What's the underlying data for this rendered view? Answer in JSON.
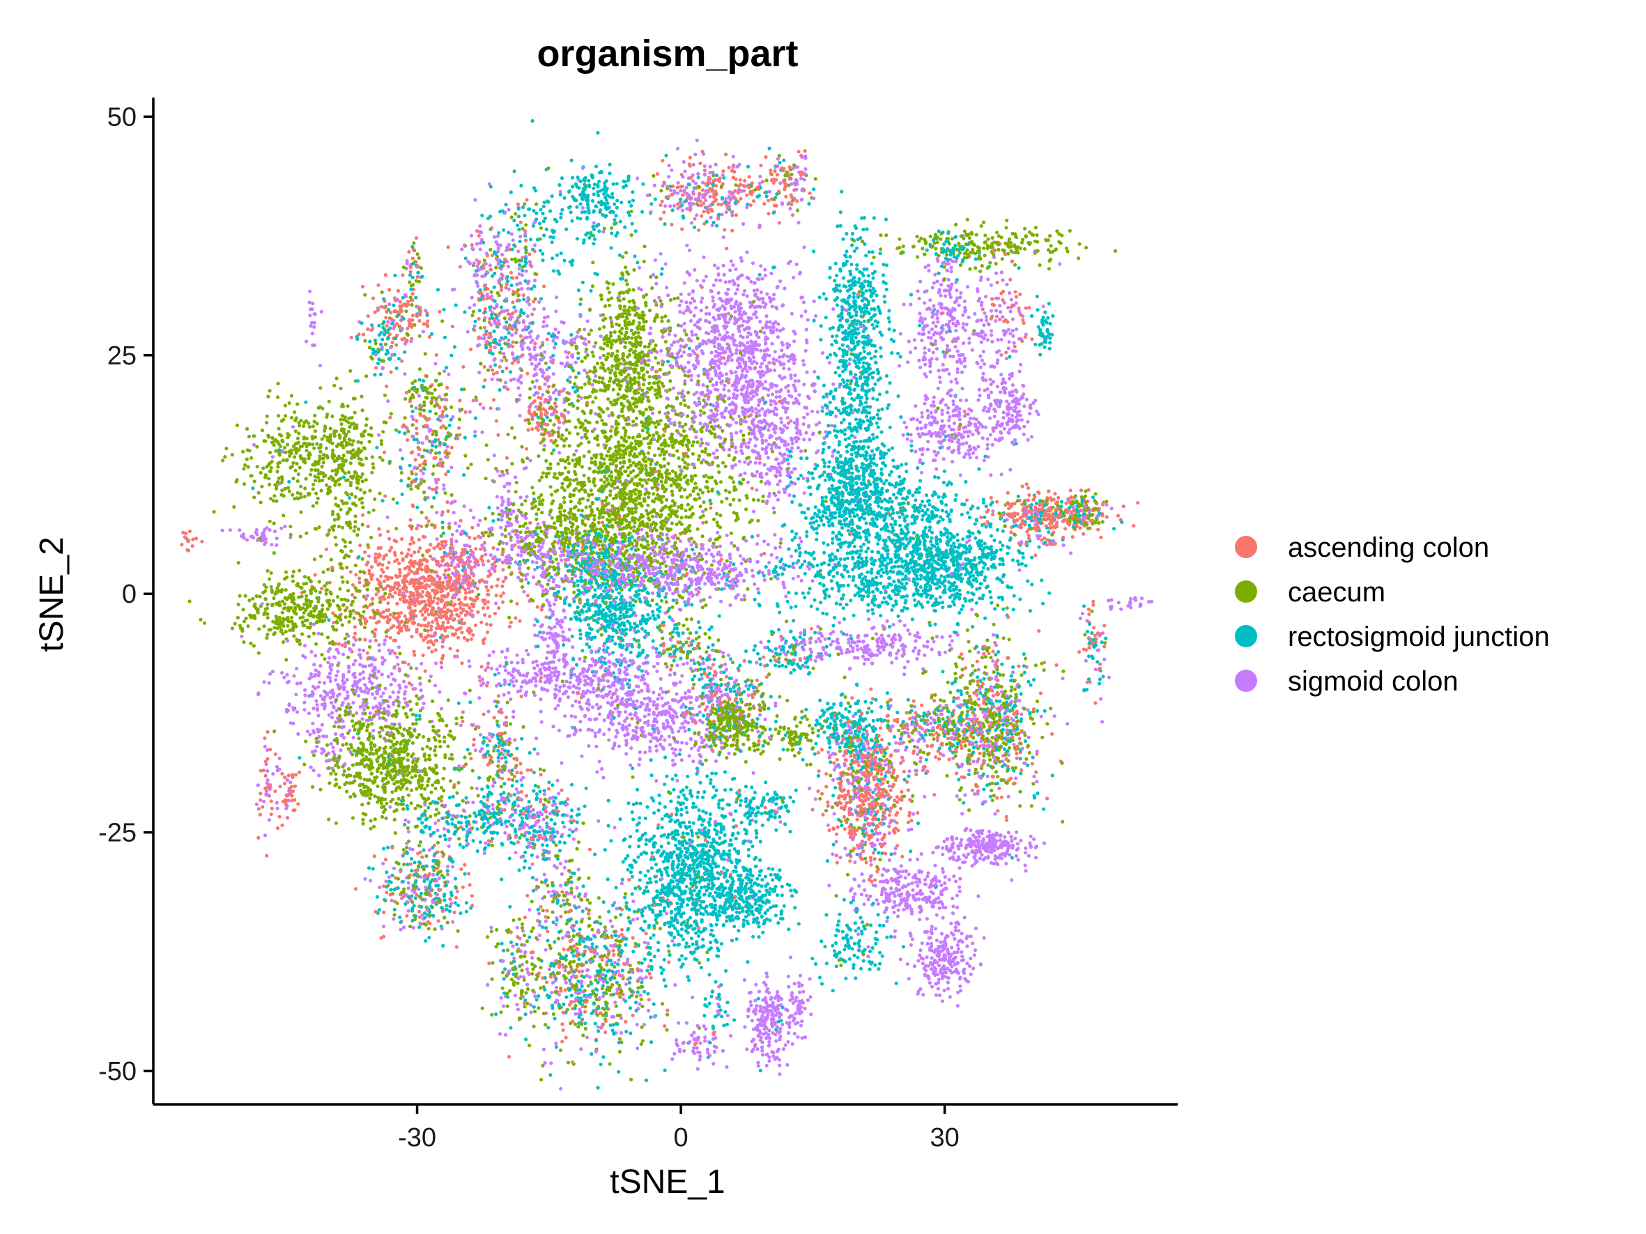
{
  "chart_data": {
    "type": "scatter",
    "title": "organism_part",
    "xlabel": "tSNE_1",
    "ylabel": "tSNE_2",
    "xlim": [
      -60,
      56.5
    ],
    "ylim": [
      -53.5,
      52
    ],
    "x_ticks": [
      -30,
      0,
      30
    ],
    "y_ticks": [
      -50,
      -25,
      0,
      25,
      50
    ],
    "x_tick_labels": [
      "-30",
      "0",
      "30"
    ],
    "y_tick_labels": [
      "-50",
      "-25",
      "0",
      "25",
      "50"
    ],
    "grid": false,
    "legend_position": "right",
    "series": [
      {
        "name": "ascending colon",
        "color": "#F8766D"
      },
      {
        "name": "caecum",
        "color": "#7CAE00"
      },
      {
        "name": "rectosigmoid junction",
        "color": "#00BFC4"
      },
      {
        "name": "sigmoid colon",
        "color": "#C77CFF"
      }
    ],
    "clusters": [
      {
        "cx": -29,
        "cy": 0,
        "sx": 4.5,
        "sy": 3.2,
        "n": 900,
        "mix": [
          0.96,
          0.01,
          0.01,
          0.02
        ]
      },
      {
        "cx": -56,
        "cy": 5.5,
        "sx": 0.5,
        "sy": 0.6,
        "n": 14,
        "mix": [
          1,
          0,
          0,
          0
        ]
      },
      {
        "cx": -48,
        "cy": 6,
        "sx": 1.5,
        "sy": 0.5,
        "n": 40,
        "mix": [
          0,
          0,
          0,
          1
        ]
      },
      {
        "cx": -43,
        "cy": -1.5,
        "sx": 4,
        "sy": 1.8,
        "n": 360,
        "mix": [
          0,
          0.98,
          0.01,
          0.01
        ]
      },
      {
        "cx": -43,
        "cy": 14,
        "sx": 3.5,
        "sy": 3,
        "n": 340,
        "mix": [
          0,
          0.98,
          0.01,
          0.01
        ]
      },
      {
        "cx": -38,
        "cy": 12,
        "sx": 1.5,
        "sy": 5,
        "n": 230,
        "mix": [
          0,
          0.98,
          0.01,
          0.01
        ]
      },
      {
        "cx": -37,
        "cy": -10,
        "sx": 4,
        "sy": 2.2,
        "n": 360,
        "mix": [
          0.01,
          0.01,
          0.02,
          0.96
        ]
      },
      {
        "cx": -40,
        "cy": -16,
        "sx": 1.2,
        "sy": 1.5,
        "n": 40,
        "mix": [
          0,
          0,
          0,
          1
        ]
      },
      {
        "cx": -47,
        "cy": -20,
        "sx": 0.8,
        "sy": 2.5,
        "n": 50,
        "mix": [
          0.5,
          0,
          0,
          0.5
        ]
      },
      {
        "cx": -44.5,
        "cy": -21,
        "sx": 0.5,
        "sy": 1.5,
        "n": 40,
        "mix": [
          0.85,
          0,
          0,
          0.15
        ]
      },
      {
        "cx": -42,
        "cy": 29,
        "sx": 0.4,
        "sy": 1.5,
        "n": 18,
        "mix": [
          0,
          0,
          0,
          1
        ]
      },
      {
        "cx": -32,
        "cy": 29,
        "sx": 2,
        "sy": 2,
        "n": 140,
        "mix": [
          0.6,
          0.12,
          0.14,
          0.14
        ]
      },
      {
        "cx": -34,
        "cy": 26,
        "sx": 1.2,
        "sy": 2,
        "n": 60,
        "mix": [
          0.1,
          0.2,
          0.5,
          0.2
        ]
      },
      {
        "cx": -30.5,
        "cy": 34,
        "sx": 0.6,
        "sy": 1.8,
        "n": 40,
        "mix": [
          0.2,
          0.3,
          0.2,
          0.3
        ]
      },
      {
        "cx": -28.5,
        "cy": 16,
        "sx": 2.2,
        "sy": 4,
        "n": 270,
        "mix": [
          0.28,
          0.3,
          0.22,
          0.2
        ]
      },
      {
        "cx": -29,
        "cy": 21,
        "sx": 1,
        "sy": 1.2,
        "n": 40,
        "mix": [
          0,
          0.9,
          0.1,
          0
        ]
      },
      {
        "cx": -25,
        "cy": 4,
        "sx": 1.5,
        "sy": 3,
        "n": 90,
        "mix": [
          0,
          0.02,
          0.03,
          0.95
        ]
      },
      {
        "cx": -21.5,
        "cy": 33,
        "sx": 2,
        "sy": 3,
        "n": 180,
        "mix": [
          0.15,
          0.1,
          0.15,
          0.6
        ]
      },
      {
        "cx": -21,
        "cy": 27,
        "sx": 1.5,
        "sy": 3.5,
        "n": 150,
        "mix": [
          0.45,
          0.15,
          0.2,
          0.2
        ]
      },
      {
        "cx": -18,
        "cy": 33,
        "sx": 1.2,
        "sy": 4,
        "n": 100,
        "mix": [
          0.2,
          0.25,
          0.3,
          0.25
        ]
      },
      {
        "cx": -15,
        "cy": 25,
        "sx": 3,
        "sy": 3,
        "n": 230,
        "mix": [
          0.04,
          0.04,
          0.1,
          0.82
        ]
      },
      {
        "cx": -15.5,
        "cy": 18.5,
        "sx": 1.2,
        "sy": 1.5,
        "n": 90,
        "mix": [
          0.8,
          0.06,
          0.07,
          0.07
        ]
      },
      {
        "cx": -19.5,
        "cy": 8,
        "sx": 1.5,
        "sy": 3,
        "n": 110,
        "mix": [
          0.02,
          0.1,
          0.05,
          0.83
        ]
      },
      {
        "cx": -16,
        "cy": 4,
        "sx": 2,
        "sy": 2,
        "n": 110,
        "mix": [
          0.02,
          0.08,
          0.1,
          0.8
        ]
      },
      {
        "cx": -16.5,
        "cy": -8.5,
        "sx": 4,
        "sy": 1.3,
        "n": 160,
        "mix": [
          0,
          0.02,
          0.02,
          0.96
        ]
      },
      {
        "cx": -14.5,
        "cy": -4,
        "sx": 1,
        "sy": 3,
        "n": 110,
        "mix": [
          0,
          0.02,
          0.02,
          0.96
        ]
      },
      {
        "cx": -12,
        "cy": 39,
        "sx": 5,
        "sy": 3,
        "n": 160,
        "mix": [
          0,
          0.01,
          0.97,
          0.02
        ]
      },
      {
        "cx": -10,
        "cy": 42,
        "sx": 1.8,
        "sy": 1.5,
        "n": 110,
        "mix": [
          0,
          0.01,
          0.97,
          0.02
        ]
      },
      {
        "cx": -6,
        "cy": 25,
        "sx": 2.5,
        "sy": 4,
        "n": 480,
        "mix": [
          0.01,
          0.96,
          0.01,
          0.02
        ]
      },
      {
        "cx": -5,
        "cy": 12,
        "sx": 6,
        "sy": 6,
        "n": 1500,
        "mix": [
          0.01,
          0.96,
          0.01,
          0.02
        ]
      },
      {
        "cx": -10,
        "cy": 6,
        "sx": 5,
        "sy": 3,
        "n": 400,
        "mix": [
          0.01,
          0.94,
          0.02,
          0.03
        ]
      },
      {
        "cx": -7,
        "cy": -2,
        "sx": 3,
        "sy": 3,
        "n": 440,
        "mix": [
          0.01,
          0.01,
          0.96,
          0.02
        ]
      },
      {
        "cx": -9,
        "cy": 2,
        "sx": 2,
        "sy": 2.5,
        "n": 160,
        "mix": [
          0.01,
          0.02,
          0.95,
          0.02
        ]
      },
      {
        "cx": -4,
        "cy": 3,
        "sx": 6,
        "sy": 1.8,
        "n": 320,
        "mix": [
          0.03,
          0.04,
          0.05,
          0.88
        ]
      },
      {
        "cx": 4,
        "cy": 2,
        "sx": 5,
        "sy": 1.6,
        "n": 220,
        "mix": [
          0.03,
          0.04,
          0.05,
          0.88
        ]
      },
      {
        "cx": -3,
        "cy": -13,
        "sx": 5,
        "sy": 2.5,
        "n": 450,
        "mix": [
          0.01,
          0.01,
          0.01,
          0.97
        ]
      },
      {
        "cx": -8.5,
        "cy": -9,
        "sx": 2.5,
        "sy": 1.6,
        "n": 140,
        "mix": [
          0.01,
          0.02,
          0.02,
          0.95
        ]
      },
      {
        "cx": 0.5,
        "cy": -5.5,
        "sx": 2,
        "sy": 1.5,
        "n": 110,
        "mix": [
          0.1,
          0.35,
          0.35,
          0.2
        ]
      },
      {
        "cx": 2.5,
        "cy": 42,
        "sx": 3,
        "sy": 1.8,
        "n": 260,
        "mix": [
          0.42,
          0.07,
          0.11,
          0.4
        ]
      },
      {
        "cx": 8.5,
        "cy": 42,
        "sx": 1.2,
        "sy": 1,
        "n": 40,
        "mix": [
          0.6,
          0.1,
          0.2,
          0.1
        ]
      },
      {
        "cx": 12.5,
        "cy": 43,
        "sx": 1.5,
        "sy": 1.8,
        "n": 110,
        "mix": [
          0.42,
          0.1,
          0.1,
          0.38
        ]
      },
      {
        "cx": 6,
        "cy": 27,
        "sx": 4,
        "sy": 4,
        "n": 650,
        "mix": [
          0.01,
          0.01,
          0.01,
          0.97
        ]
      },
      {
        "cx": 8.5,
        "cy": 19,
        "sx": 4,
        "sy": 3.5,
        "n": 450,
        "mix": [
          0.01,
          0.01,
          0.01,
          0.97
        ]
      },
      {
        "cx": 11,
        "cy": 13,
        "sx": 1.5,
        "sy": 3,
        "n": 90,
        "mix": [
          0.01,
          0.02,
          0.03,
          0.94
        ]
      },
      {
        "cx": 5,
        "cy": -10.5,
        "sx": 2.5,
        "sy": 2,
        "n": 230,
        "mix": [
          0.28,
          0.06,
          0.36,
          0.3
        ]
      },
      {
        "cx": 6.5,
        "cy": -14,
        "sx": 2.2,
        "sy": 1.5,
        "n": 230,
        "mix": [
          0.02,
          0.9,
          0.05,
          0.03
        ]
      },
      {
        "cx": 12.5,
        "cy": -6,
        "sx": 1.5,
        "sy": 1.3,
        "n": 110,
        "mix": [
          0.15,
          0.15,
          0.55,
          0.15
        ]
      },
      {
        "cx": 13,
        "cy": -15,
        "sx": 1,
        "sy": 1,
        "n": 60,
        "mix": [
          0,
          0.9,
          0.1,
          0
        ]
      },
      {
        "cx": 20,
        "cy": 30,
        "sx": 1.7,
        "sy": 4,
        "n": 330,
        "mix": [
          0,
          0.01,
          0.97,
          0.02
        ]
      },
      {
        "cx": 20,
        "cy": 20,
        "sx": 1.7,
        "sy": 4.5,
        "n": 330,
        "mix": [
          0,
          0.01,
          0.97,
          0.02
        ]
      },
      {
        "cx": 20,
        "cy": 10,
        "sx": 3,
        "sy": 3,
        "n": 600,
        "mix": [
          0.01,
          0.01,
          0.97,
          0.01
        ]
      },
      {
        "cx": 23,
        "cy": 2,
        "sx": 6,
        "sy": 2.2,
        "n": 500,
        "mix": [
          0,
          0.01,
          0.98,
          0.01
        ]
      },
      {
        "cx": 31,
        "cy": 3,
        "sx": 4,
        "sy": 2.5,
        "n": 450,
        "mix": [
          0,
          0.01,
          0.98,
          0.01
        ]
      },
      {
        "cx": 27,
        "cy": 7,
        "sx": 2.5,
        "sy": 3,
        "n": 220,
        "mix": [
          0,
          0.01,
          0.98,
          0.01
        ]
      },
      {
        "cx": 22,
        "cy": -5.5,
        "sx": 4.5,
        "sy": 1,
        "n": 200,
        "mix": [
          0,
          0.01,
          0.01,
          0.98
        ]
      },
      {
        "cx": 30,
        "cy": 28,
        "sx": 2,
        "sy": 3.5,
        "n": 260,
        "mix": [
          0.01,
          0.01,
          0.02,
          0.96
        ]
      },
      {
        "cx": 30.5,
        "cy": 17,
        "sx": 2.5,
        "sy": 1.8,
        "n": 220,
        "mix": [
          0.01,
          0.01,
          0.02,
          0.96
        ]
      },
      {
        "cx": 35.5,
        "cy": 25,
        "sx": 1.5,
        "sy": 5,
        "n": 110,
        "mix": [
          0,
          0,
          0.05,
          0.95
        ]
      },
      {
        "cx": 37.5,
        "cy": 19.5,
        "sx": 1.3,
        "sy": 2,
        "n": 110,
        "mix": [
          0,
          0,
          0.02,
          0.98
        ]
      },
      {
        "cx": 35,
        "cy": 36.5,
        "sx": 5,
        "sy": 1,
        "n": 220,
        "mix": [
          0.01,
          0.94,
          0.03,
          0.02
        ]
      },
      {
        "cx": 30.5,
        "cy": 36,
        "sx": 1.3,
        "sy": 0.9,
        "n": 40,
        "mix": [
          0,
          0.1,
          0.9,
          0
        ]
      },
      {
        "cx": 37.5,
        "cy": 29.5,
        "sx": 1.2,
        "sy": 2,
        "n": 50,
        "mix": [
          0.6,
          0,
          0,
          0.4
        ]
      },
      {
        "cx": 41.5,
        "cy": 28,
        "sx": 0.6,
        "sy": 1.5,
        "n": 40,
        "mix": [
          0,
          0,
          1,
          0
        ]
      },
      {
        "cx": 42,
        "cy": 8.5,
        "sx": 3.5,
        "sy": 1,
        "n": 380,
        "mix": [
          0.68,
          0.07,
          0.18,
          0.07
        ]
      },
      {
        "cx": 46,
        "cy": 8.5,
        "sx": 1,
        "sy": 1,
        "n": 60,
        "mix": [
          0.1,
          0.6,
          0.2,
          0.1
        ]
      },
      {
        "cx": 41,
        "cy": 5.5,
        "sx": 2,
        "sy": 0.6,
        "n": 30,
        "mix": [
          0.5,
          0.1,
          0.2,
          0.2
        ]
      },
      {
        "cx": 47,
        "cy": -5.5,
        "sx": 0.8,
        "sy": 2.5,
        "n": 70,
        "mix": [
          0.35,
          0.1,
          0.35,
          0.2
        ]
      },
      {
        "cx": 51,
        "cy": -1,
        "sx": 1.2,
        "sy": 0.4,
        "n": 20,
        "mix": [
          0,
          0,
          0,
          1
        ]
      },
      {
        "cx": 35,
        "cy": -13.5,
        "sx": 3,
        "sy": 4,
        "n": 750,
        "mix": [
          0.22,
          0.4,
          0.2,
          0.18
        ]
      },
      {
        "cx": 28,
        "cy": -14,
        "sx": 3.5,
        "sy": 1.6,
        "n": 220,
        "mix": [
          0.3,
          0.3,
          0.2,
          0.2
        ]
      },
      {
        "cx": 19,
        "cy": -14,
        "sx": 2,
        "sy": 1.6,
        "n": 220,
        "mix": [
          0.04,
          0.06,
          0.85,
          0.05
        ]
      },
      {
        "cx": 21,
        "cy": -22,
        "sx": 2.2,
        "sy": 3.5,
        "n": 500,
        "mix": [
          0.55,
          0.1,
          0.15,
          0.2
        ]
      },
      {
        "cx": 22,
        "cy": -18,
        "sx": 3,
        "sy": 1.6,
        "n": 160,
        "mix": [
          0.5,
          0.2,
          0.1,
          0.2
        ]
      },
      {
        "cx": 34.5,
        "cy": -26.5,
        "sx": 2.8,
        "sy": 1,
        "n": 220,
        "mix": [
          0,
          0,
          0.01,
          0.99
        ]
      },
      {
        "cx": 26,
        "cy": -31,
        "sx": 3,
        "sy": 1.4,
        "n": 220,
        "mix": [
          0,
          0,
          0.01,
          0.99
        ]
      },
      {
        "cx": 30,
        "cy": -38,
        "sx": 1.8,
        "sy": 2,
        "n": 220,
        "mix": [
          0,
          0,
          0.01,
          0.99
        ]
      },
      {
        "cx": 20,
        "cy": -37,
        "sx": 2,
        "sy": 2,
        "n": 110,
        "mix": [
          0,
          0.05,
          0.9,
          0.05
        ]
      },
      {
        "cx": -33,
        "cy": -18,
        "sx": 4,
        "sy": 3.5,
        "n": 650,
        "mix": [
          0,
          0.97,
          0.01,
          0.02
        ]
      },
      {
        "cx": -29.5,
        "cy": -31,
        "sx": 2.5,
        "sy": 2.5,
        "n": 330,
        "mix": [
          0.2,
          0.2,
          0.4,
          0.2
        ]
      },
      {
        "cx": -21,
        "cy": -17.5,
        "sx": 2,
        "sy": 3.5,
        "n": 220,
        "mix": [
          0.2,
          0.2,
          0.35,
          0.25
        ]
      },
      {
        "cx": -23,
        "cy": -24,
        "sx": 4,
        "sy": 1.5,
        "n": 220,
        "mix": [
          0.05,
          0.05,
          0.75,
          0.15
        ]
      },
      {
        "cx": -16,
        "cy": -24,
        "sx": 2.5,
        "sy": 2.5,
        "n": 220,
        "mix": [
          0.15,
          0.1,
          0.45,
          0.3
        ]
      },
      {
        "cx": -10,
        "cy": -40,
        "sx": 4,
        "sy": 4,
        "n": 700,
        "mix": [
          0.17,
          0.3,
          0.28,
          0.25
        ]
      },
      {
        "cx": -18.5,
        "cy": -40,
        "sx": 1.5,
        "sy": 3,
        "n": 110,
        "mix": [
          0.05,
          0.6,
          0.1,
          0.25
        ]
      },
      {
        "cx": -13.5,
        "cy": -31,
        "sx": 1.8,
        "sy": 2,
        "n": 90,
        "mix": [
          0.1,
          0.35,
          0.2,
          0.35
        ]
      },
      {
        "cx": 1,
        "cy": -29,
        "sx": 3.5,
        "sy": 4.5,
        "n": 1000,
        "mix": [
          0.01,
          0.01,
          0.97,
          0.01
        ]
      },
      {
        "cx": 8,
        "cy": -32,
        "sx": 2.5,
        "sy": 1.6,
        "n": 240,
        "mix": [
          0.01,
          0.01,
          0.97,
          0.01
        ]
      },
      {
        "cx": 9,
        "cy": -22.5,
        "sx": 2,
        "sy": 1.1,
        "n": 100,
        "mix": [
          0.05,
          0.05,
          0.85,
          0.05
        ]
      },
      {
        "cx": 10,
        "cy": -45,
        "sx": 1.4,
        "sy": 2,
        "n": 210,
        "mix": [
          0,
          0,
          0.02,
          0.98
        ]
      },
      {
        "cx": 13.5,
        "cy": -43,
        "sx": 0.6,
        "sy": 1.8,
        "n": 40,
        "mix": [
          0,
          0,
          0,
          1
        ]
      },
      {
        "cx": 2,
        "cy": -47,
        "sx": 1.5,
        "sy": 1,
        "n": 60,
        "mix": [
          0.1,
          0,
          0.1,
          0.8
        ]
      },
      {
        "cx": 4,
        "cy": -43.5,
        "sx": 0.8,
        "sy": 1.3,
        "n": 30,
        "mix": [
          0,
          0,
          0.8,
          0.2
        ]
      }
    ]
  }
}
